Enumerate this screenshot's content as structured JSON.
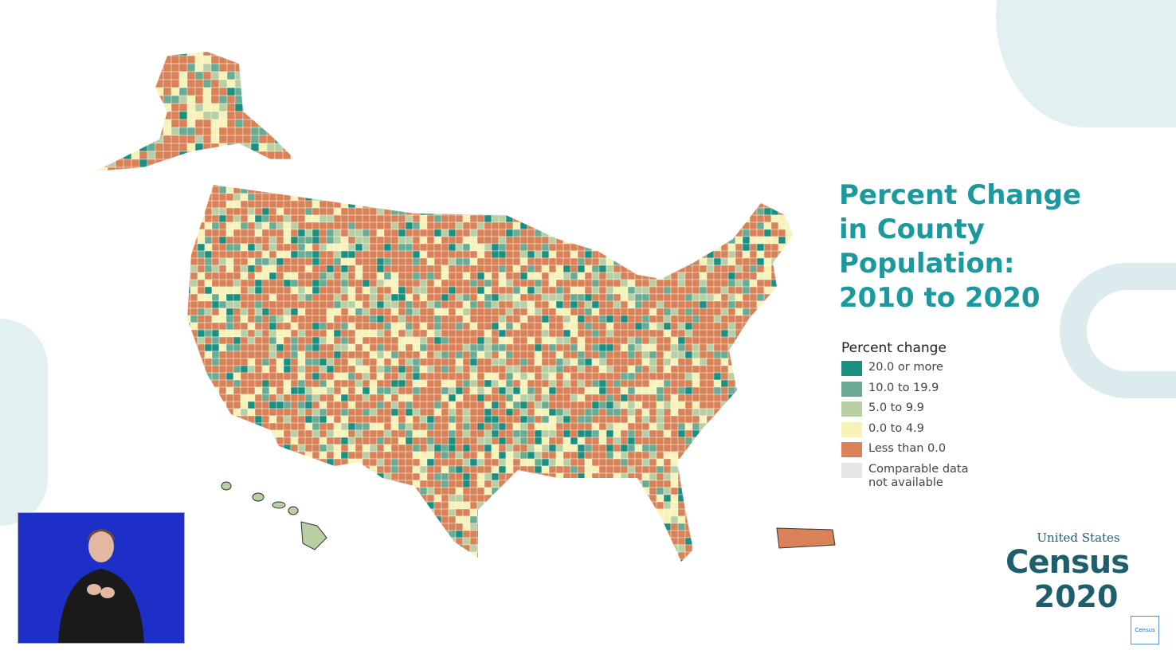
{
  "title": [
    "Percent Change",
    "in County",
    "Population:",
    "2010 to 2020"
  ],
  "legend": {
    "heading": "Percent change",
    "items": [
      {
        "label": "20.0 or more",
        "color": "#1b8f80"
      },
      {
        "label": "10.0 to 19.9",
        "color": "#6aab93"
      },
      {
        "label": "5.0 to 9.9",
        "color": "#b7cfa2"
      },
      {
        "label": "0.0 to 4.9",
        "color": "#f6f2b8"
      },
      {
        "label": "Less than 0.0",
        "color": "#d98257"
      },
      {
        "label": "Comparable data not available",
        "color": "#e6e6ea"
      }
    ]
  },
  "logo": {
    "line1": "United States",
    "line2": "Census",
    "line3": "2020",
    "badge": "Census"
  },
  "colors": {
    "accent": "#1a9a9e",
    "brand": "#1e5f6e",
    "interpreter_bg": "#1e2fc8"
  }
}
